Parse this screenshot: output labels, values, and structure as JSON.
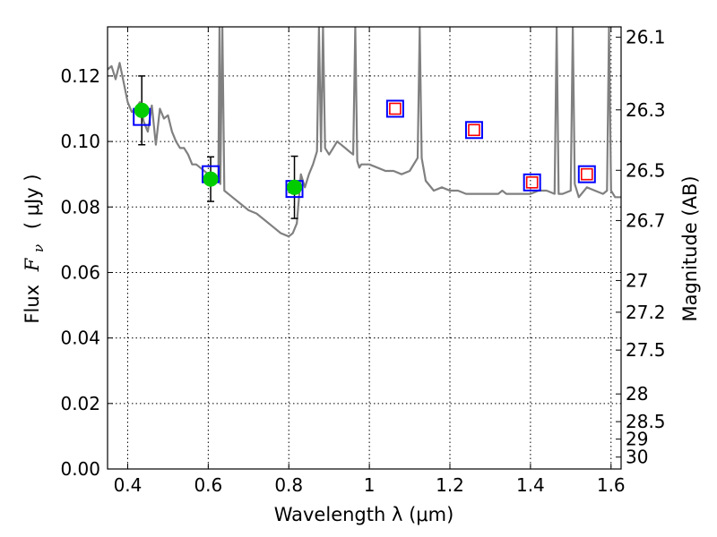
{
  "chart_data": {
    "type": "scatter",
    "xlabel": "Wavelength  λ (μm)",
    "ylabel_text": "Flux",
    "ylabel_symbol": "F",
    "ylabel_subscript": "ν",
    "ylabel_unit": "( μJy )",
    "y2label": "Magnitude (AB)",
    "xlim": [
      0.35,
      1.625
    ],
    "ylim": [
      0.0,
      0.135
    ],
    "x_ticks": [
      0.4,
      0.6,
      0.8,
      1.0,
      1.2,
      1.4,
      1.6
    ],
    "x_tick_labels": [
      "0.4",
      "0.6",
      "0.8",
      "1",
      "1.2",
      "1.4",
      "1.6"
    ],
    "y_ticks": [
      0.0,
      0.02,
      0.04,
      0.06,
      0.08,
      0.1,
      0.12
    ],
    "y_tick_labels": [
      "0.00",
      "0.02",
      "0.04",
      "0.06",
      "0.08",
      "0.10",
      "0.12"
    ],
    "mag_ticks": [
      26.1,
      26.3,
      26.5,
      26.7,
      27,
      27.2,
      27.5,
      28,
      28.5,
      29,
      30
    ],
    "mag_tick_labels": [
      "26.1",
      "26.3",
      "26.5",
      "26.7",
      "27",
      "27.2",
      "27.5",
      "28",
      "28.5",
      "29",
      "30"
    ],
    "grid": true,
    "colors": {
      "model": "#808080",
      "observed": "#00cc00",
      "model_band_box": "#0000ff",
      "predicted_box": "#ff0000",
      "errorbar": "#000000"
    },
    "series": [
      {
        "type": "line",
        "x": [
          0.35,
          0.36,
          0.37,
          0.38,
          0.39,
          0.4,
          0.41,
          0.42,
          0.43,
          0.44,
          0.45,
          0.46,
          0.47,
          0.48,
          0.49,
          0.5,
          0.51,
          0.52,
          0.53,
          0.54,
          0.55,
          0.56,
          0.57,
          0.58,
          0.59,
          0.6,
          0.61,
          0.62,
          0.625,
          0.628,
          0.63,
          0.635,
          0.64,
          0.66,
          0.68,
          0.7,
          0.72,
          0.74,
          0.76,
          0.78,
          0.8,
          0.81,
          0.82,
          0.83,
          0.84,
          0.85,
          0.86,
          0.87,
          0.875,
          0.88,
          0.885,
          0.89,
          0.9,
          0.91,
          0.92,
          0.93,
          0.94,
          0.95,
          0.96,
          0.965,
          0.97,
          0.975,
          0.98,
          0.99,
          1.0,
          1.02,
          1.04,
          1.06,
          1.08,
          1.1,
          1.12,
          1.125,
          1.13,
          1.14,
          1.16,
          1.18,
          1.2,
          1.22,
          1.24,
          1.26,
          1.28,
          1.3,
          1.32,
          1.33,
          1.34,
          1.36,
          1.38,
          1.4,
          1.42,
          1.44,
          1.46,
          1.465,
          1.47,
          1.48,
          1.5,
          1.505,
          1.51,
          1.52,
          1.54,
          1.56,
          1.58,
          1.59,
          1.595,
          1.6,
          1.61,
          1.625
        ],
        "y": [
          0.122,
          0.123,
          0.119,
          0.124,
          0.118,
          0.112,
          0.109,
          0.11,
          0.112,
          0.106,
          0.103,
          0.111,
          0.099,
          0.11,
          0.107,
          0.108,
          0.103,
          0.1,
          0.098,
          0.098,
          0.096,
          0.093,
          0.093,
          0.092,
          0.091,
          0.09,
          0.089,
          0.088,
          0.088,
          0.135,
          0.087,
          0.135,
          0.085,
          0.083,
          0.081,
          0.079,
          0.078,
          0.076,
          0.074,
          0.072,
          0.071,
          0.072,
          0.075,
          0.09,
          0.086,
          0.09,
          0.093,
          0.097,
          0.135,
          0.097,
          0.135,
          0.098,
          0.096,
          0.098,
          0.1,
          0.099,
          0.098,
          0.097,
          0.096,
          0.135,
          0.094,
          0.092,
          0.093,
          0.093,
          0.093,
          0.092,
          0.091,
          0.091,
          0.09,
          0.091,
          0.095,
          0.135,
          0.095,
          0.088,
          0.085,
          0.086,
          0.085,
          0.085,
          0.084,
          0.084,
          0.084,
          0.084,
          0.084,
          0.085,
          0.084,
          0.084,
          0.084,
          0.084,
          0.085,
          0.085,
          0.084,
          0.135,
          0.084,
          0.084,
          0.085,
          0.135,
          0.087,
          0.083,
          0.086,
          0.085,
          0.084,
          0.085,
          0.135,
          0.085,
          0.083,
          0.083
        ]
      },
      {
        "type": "scatter_error",
        "x": [
          0.435,
          0.606,
          0.814
        ],
        "y": [
          0.1095,
          0.0885,
          0.086
        ],
        "yerr": [
          0.0105,
          0.0068,
          0.0095
        ]
      },
      {
        "type": "open_square",
        "x": [
          0.435,
          0.606,
          0.814,
          1.064,
          1.26,
          1.404,
          1.54
        ],
        "y": [
          0.1075,
          0.09,
          0.0855,
          0.11,
          0.1035,
          0.0875,
          0.09
        ]
      },
      {
        "type": "open_square_small",
        "x": [
          1.064,
          1.26,
          1.404,
          1.54
        ],
        "y": [
          0.11,
          0.1035,
          0.0875,
          0.09
        ]
      }
    ]
  }
}
